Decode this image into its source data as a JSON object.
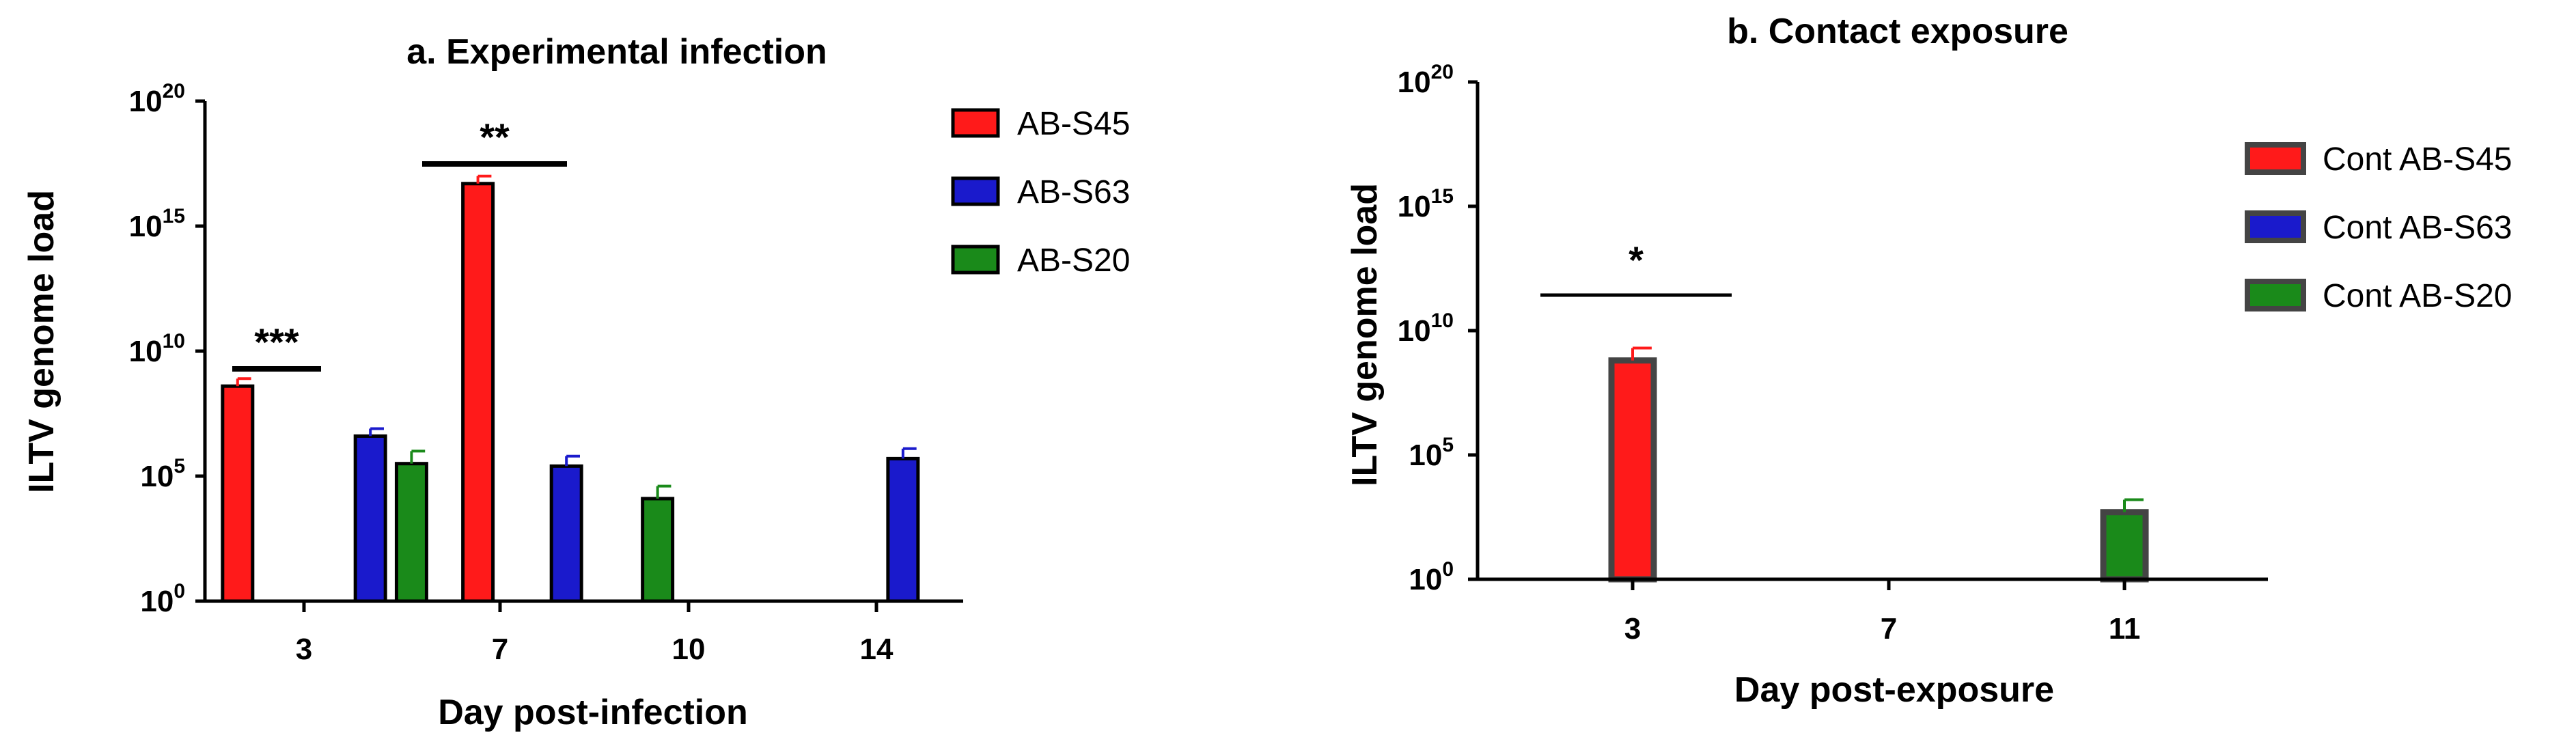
{
  "chart_data": [
    {
      "type": "bar",
      "title": "a. Experimental infection",
      "xlabel": "Day post-infection",
      "ylabel": "ILTV genome load",
      "y_scale": "log10",
      "ylim_exponent": [
        0,
        20
      ],
      "y_ticks": [
        {
          "base": "10",
          "exp": "0"
        },
        {
          "base": "10",
          "exp": "5"
        },
        {
          "base": "10",
          "exp": "10"
        },
        {
          "base": "10",
          "exp": "15"
        },
        {
          "base": "10",
          "exp": "20"
        }
      ],
      "categories": [
        "3",
        "7",
        "10",
        "14"
      ],
      "series": [
        {
          "name": "AB-S45",
          "color": "#ff1a1a",
          "log10_values": [
            8.6,
            16.7,
            null,
            null
          ],
          "log10_error": [
            0.3,
            0.3,
            null,
            null
          ]
        },
        {
          "name": "AB-S63",
          "color": "#1a1acc",
          "log10_values": [
            6.6,
            5.4,
            null,
            5.7
          ],
          "log10_error": [
            0.3,
            0.4,
            null,
            0.4
          ]
        },
        {
          "name": "AB-S20",
          "color": "#1a8a1a",
          "log10_values": [
            null,
            5.5,
            4.1,
            null
          ],
          "log10_error": [
            null,
            0.5,
            0.5,
            null
          ]
        }
      ],
      "significance": [
        {
          "category": "3",
          "label": "***"
        },
        {
          "category": "7",
          "label": "**"
        }
      ],
      "legend_position": "right",
      "grid": false
    },
    {
      "type": "bar",
      "title": "b.  Contact exposure",
      "xlabel": "Day post-exposure",
      "ylabel": "ILTV genome load",
      "y_scale": "log10",
      "ylim_exponent": [
        0,
        20
      ],
      "y_ticks": [
        {
          "base": "10",
          "exp": "0"
        },
        {
          "base": "10",
          "exp": "5"
        },
        {
          "base": "10",
          "exp": "10"
        },
        {
          "base": "10",
          "exp": "15"
        },
        {
          "base": "10",
          "exp": "20"
        }
      ],
      "categories": [
        "3",
        "7",
        "11"
      ],
      "series": [
        {
          "name": "Cont AB-S45",
          "color": "#ff1a1a",
          "log10_values": [
            8.8,
            null,
            null
          ],
          "log10_error": [
            0.5,
            null,
            null
          ]
        },
        {
          "name": "Cont AB-S63",
          "color": "#1a1acc",
          "log10_values": [
            null,
            null,
            null
          ],
          "log10_error": [
            null,
            null,
            null
          ]
        },
        {
          "name": "Cont AB-S20",
          "color": "#1a8a1a",
          "log10_values": [
            null,
            null,
            2.7
          ],
          "log10_error": [
            null,
            null,
            0.5
          ]
        }
      ],
      "significance": [
        {
          "category": "3",
          "label": "*"
        }
      ],
      "legend_position": "right",
      "grid": false
    }
  ]
}
